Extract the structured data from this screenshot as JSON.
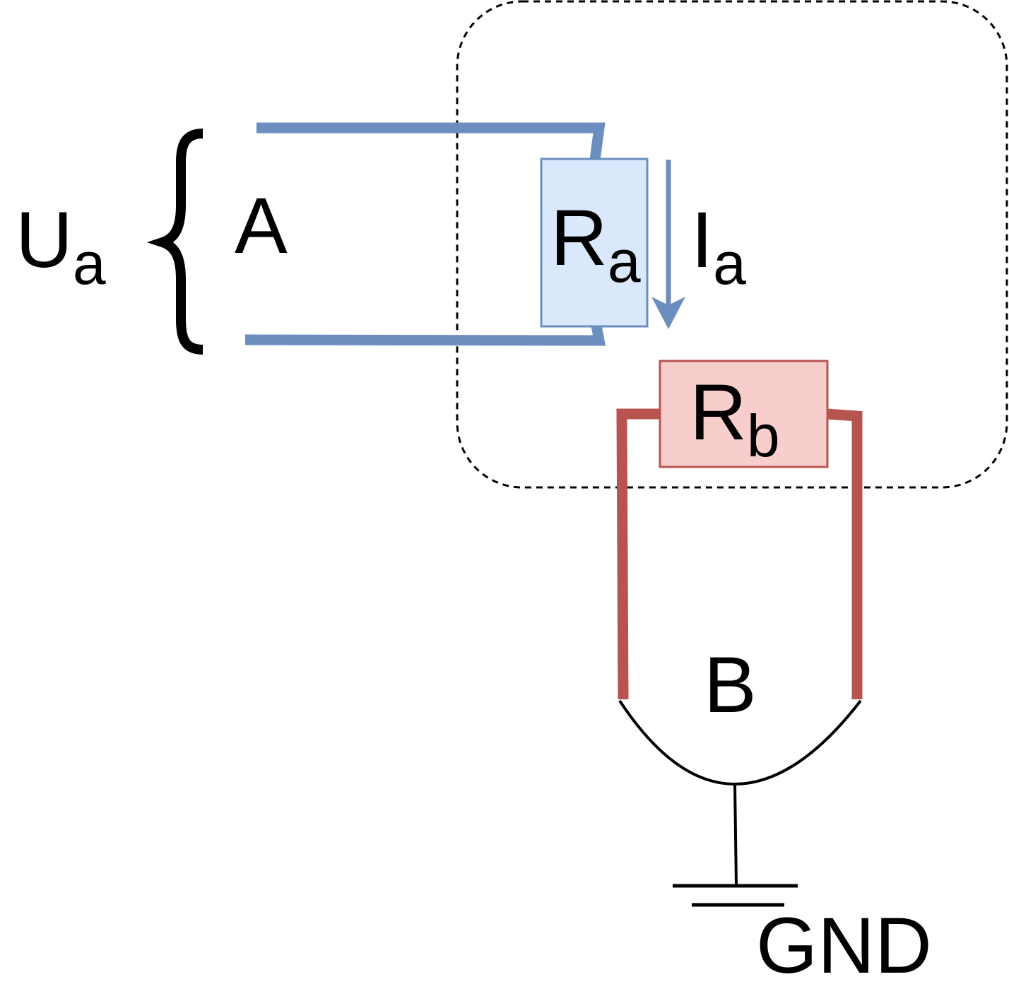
{
  "colors": {
    "wire_a": "#6c8ebf",
    "resistor_a_fill": "#dae8fc",
    "resistor_a_stroke": "#6c8ebf",
    "wire_b": "#b85450",
    "resistor_b_fill": "#f8cecc",
    "resistor_b_stroke": "#b85450",
    "line": "#000000"
  },
  "labels": {
    "voltage": {
      "main": "U",
      "sub": "a"
    },
    "node_a": "A",
    "resistor_a": {
      "main": "R",
      "sub": "a"
    },
    "current": {
      "main": "I",
      "sub": "a"
    },
    "resistor_b": {
      "main": "R",
      "sub": "b"
    },
    "node_b": "B",
    "ground": "GND"
  }
}
